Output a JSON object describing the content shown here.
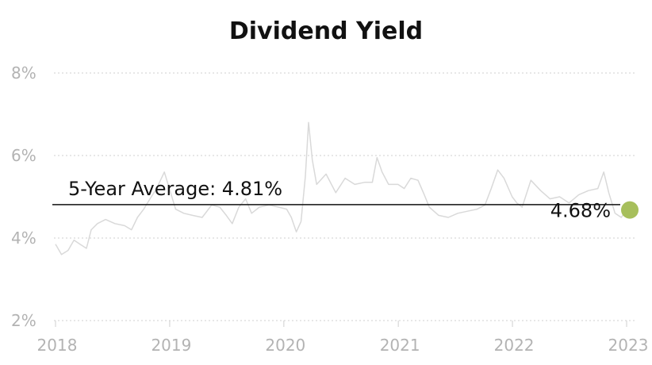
{
  "chart_data": {
    "type": "line",
    "title": "Dividend Yield",
    "xlabel": "",
    "ylabel": "",
    "x_tick_labels": [
      "2018",
      "2019",
      "2020",
      "2021",
      "2022",
      "2023"
    ],
    "y_tick_labels": [
      "2%",
      "4%",
      "6%",
      "8%"
    ],
    "xlim": [
      "2018-01-01",
      "2023-01-01"
    ],
    "ylim": [
      2,
      8
    ],
    "grid": "horizontal dotted",
    "series": [
      {
        "color": "#d9d9d9",
        "points": [
          [
            "2018-01-01",
            3.85
          ],
          [
            "2018-01-20",
            3.6
          ],
          [
            "2018-02-10",
            3.7
          ],
          [
            "2018-03-01",
            3.95
          ],
          [
            "2018-03-20",
            3.85
          ],
          [
            "2018-04-10",
            3.75
          ],
          [
            "2018-04-25",
            4.2
          ],
          [
            "2018-05-15",
            4.35
          ],
          [
            "2018-06-10",
            4.45
          ],
          [
            "2018-07-10",
            4.35
          ],
          [
            "2018-08-10",
            4.3
          ],
          [
            "2018-09-01",
            4.2
          ],
          [
            "2018-09-20",
            4.5
          ],
          [
            "2018-10-10",
            4.7
          ],
          [
            "2018-10-30",
            4.95
          ],
          [
            "2018-11-20",
            5.2
          ],
          [
            "2018-12-15",
            5.6
          ],
          [
            "2018-12-31",
            5.2
          ],
          [
            "2019-01-20",
            4.7
          ],
          [
            "2019-02-15",
            4.6
          ],
          [
            "2019-03-15",
            4.55
          ],
          [
            "2019-04-15",
            4.5
          ],
          [
            "2019-05-15",
            4.8
          ],
          [
            "2019-06-10",
            4.75
          ],
          [
            "2019-07-01",
            4.55
          ],
          [
            "2019-07-20",
            4.35
          ],
          [
            "2019-08-10",
            4.75
          ],
          [
            "2019-09-01",
            4.95
          ],
          [
            "2019-09-20",
            4.6
          ],
          [
            "2019-10-15",
            4.75
          ],
          [
            "2019-11-15",
            4.8
          ],
          [
            "2019-12-15",
            4.75
          ],
          [
            "2020-01-10",
            4.7
          ],
          [
            "2020-01-25",
            4.5
          ],
          [
            "2020-02-10",
            4.15
          ],
          [
            "2020-02-25",
            4.4
          ],
          [
            "2020-03-10",
            5.5
          ],
          [
            "2020-03-20",
            6.8
          ],
          [
            "2020-04-01",
            5.9
          ],
          [
            "2020-04-15",
            5.3
          ],
          [
            "2020-05-15",
            5.55
          ],
          [
            "2020-06-15",
            5.1
          ],
          [
            "2020-07-15",
            5.45
          ],
          [
            "2020-08-15",
            5.3
          ],
          [
            "2020-09-15",
            5.35
          ],
          [
            "2020-10-10",
            5.35
          ],
          [
            "2020-10-25",
            5.95
          ],
          [
            "2020-11-10",
            5.6
          ],
          [
            "2020-12-01",
            5.3
          ],
          [
            "2020-12-31",
            5.3
          ],
          [
            "2021-01-20",
            5.2
          ],
          [
            "2021-02-10",
            5.45
          ],
          [
            "2021-03-05",
            5.4
          ],
          [
            "2021-03-25",
            5.05
          ],
          [
            "2021-04-10",
            4.75
          ],
          [
            "2021-05-10",
            4.55
          ],
          [
            "2021-06-10",
            4.5
          ],
          [
            "2021-07-10",
            4.6
          ],
          [
            "2021-08-10",
            4.65
          ],
          [
            "2021-09-10",
            4.7
          ],
          [
            "2021-10-05",
            4.8
          ],
          [
            "2021-10-25",
            5.2
          ],
          [
            "2021-11-15",
            5.65
          ],
          [
            "2021-12-05",
            5.45
          ],
          [
            "2021-12-31",
            5.0
          ],
          [
            "2022-01-15",
            4.85
          ],
          [
            "2022-02-01",
            4.75
          ],
          [
            "2022-03-01",
            5.4
          ],
          [
            "2022-04-01",
            5.15
          ],
          [
            "2022-05-01",
            4.95
          ],
          [
            "2022-06-01",
            5.0
          ],
          [
            "2022-07-01",
            4.85
          ],
          [
            "2022-08-01",
            5.05
          ],
          [
            "2022-09-01",
            5.15
          ],
          [
            "2022-10-01",
            5.2
          ],
          [
            "2022-10-20",
            5.6
          ],
          [
            "2022-11-05",
            5.1
          ],
          [
            "2022-11-25",
            4.6
          ],
          [
            "2022-12-15",
            4.5
          ],
          [
            "2023-01-01",
            4.68
          ]
        ]
      }
    ],
    "average": {
      "value": 4.81,
      "label": "5-Year Average: 4.81%"
    },
    "current": {
      "date": "2023-01-01",
      "value": 4.68,
      "label": "4.68%",
      "color": "#a7bf5c"
    }
  }
}
